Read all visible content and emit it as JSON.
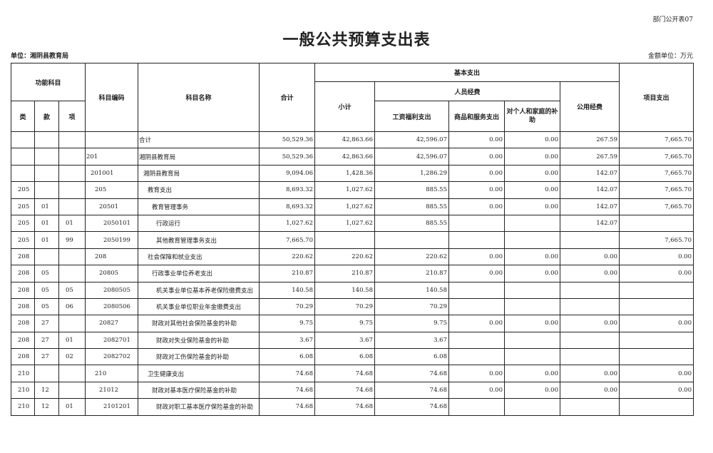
{
  "form_no": "部门公开表07",
  "title": "一般公共预算支出表",
  "unit_label": "单位：湘阴县教育局",
  "money_unit": "金额单位：万元",
  "headers": {
    "func_subject": "功能科目",
    "lei": "类",
    "kuan": "款",
    "xiang": "项",
    "code": "科目编码",
    "name": "科目名称",
    "total": "合计",
    "basic": "基本支出",
    "subtotal": "小计",
    "personnel": "人员经费",
    "wages": "工资福利支出",
    "goods": "商品和服务支出",
    "subsidy": "对个人和家庭的补助",
    "public": "公用经费",
    "project": "项目支出"
  },
  "rows": [
    [
      "",
      "",
      "",
      "",
      "合计",
      "50,529.36",
      "42,863.66",
      "42,596.07",
      "0.00",
      "0.00",
      "267.59",
      "7,665.70"
    ],
    [
      "",
      "",
      "",
      "201",
      "湘阴县教育局",
      "50,529.36",
      "42,863.66",
      "42,596.07",
      "0.00",
      "0.00",
      "267.59",
      "7,665.70"
    ],
    [
      "",
      "",
      "",
      "201001",
      "湘阴县教育局",
      "9,094.06",
      "1,428.36",
      "1,286.29",
      "0.00",
      "0.00",
      "142.07",
      "7,665.70"
    ],
    [
      "205",
      "",
      "",
      "205",
      "教育支出",
      "8,693.32",
      "1,027.62",
      "885.55",
      "0.00",
      "0.00",
      "142.07",
      "7,665.70"
    ],
    [
      "205",
      "01",
      "",
      "20501",
      "教育管理事务",
      "8,693.32",
      "1,027.62",
      "885.55",
      "0.00",
      "0.00",
      "142.07",
      "7,665.70"
    ],
    [
      "205",
      "01",
      "01",
      "2050101",
      "行政运行",
      "1,027.62",
      "1,027.62",
      "885.55",
      "",
      "",
      "142.07",
      ""
    ],
    [
      "205",
      "01",
      "99",
      "2050199",
      "其他教育管理事务支出",
      "7,665.70",
      "",
      "",
      "",
      "",
      "",
      "7,665.70"
    ],
    [
      "208",
      "",
      "",
      "208",
      "社会保障和就业支出",
      "220.62",
      "220.62",
      "220.62",
      "0.00",
      "0.00",
      "0.00",
      "0.00"
    ],
    [
      "208",
      "05",
      "",
      "20805",
      "行政事业单位养老支出",
      "210.87",
      "210.87",
      "210.87",
      "0.00",
      "0.00",
      "0.00",
      "0.00"
    ],
    [
      "208",
      "05",
      "05",
      "2080505",
      "机关事业单位基本养老保险缴费支出",
      "140.58",
      "140.58",
      "140.58",
      "",
      "",
      "",
      ""
    ],
    [
      "208",
      "05",
      "06",
      "2080506",
      "机关事业单位职业年金缴费支出",
      "70.29",
      "70.29",
      "70.29",
      "",
      "",
      "",
      ""
    ],
    [
      "208",
      "27",
      "",
      "20827",
      "财政对其他社会保险基金的补助",
      "9.75",
      "9.75",
      "9.75",
      "0.00",
      "0.00",
      "0.00",
      "0.00"
    ],
    [
      "208",
      "27",
      "01",
      "2082701",
      "财政对失业保险基金的补助",
      "3.67",
      "3.67",
      "3.67",
      "",
      "",
      "",
      ""
    ],
    [
      "208",
      "27",
      "02",
      "2082702",
      "财政对工伤保险基金的补助",
      "6.08",
      "6.08",
      "6.08",
      "",
      "",
      "",
      ""
    ],
    [
      "210",
      "",
      "",
      "210",
      "卫生健康支出",
      "74.68",
      "74.68",
      "74.68",
      "0.00",
      "0.00",
      "0.00",
      "0.00"
    ],
    [
      "210",
      "12",
      "",
      "21012",
      "财政对基本医疗保险基金的补助",
      "74.68",
      "74.68",
      "74.68",
      "0.00",
      "0.00",
      "0.00",
      "0.00"
    ],
    [
      "210",
      "12",
      "01",
      "2101201",
      "财政对职工基本医疗保险基金的补助",
      "74.68",
      "74.68",
      "74.68",
      "",
      "",
      "",
      ""
    ]
  ]
}
